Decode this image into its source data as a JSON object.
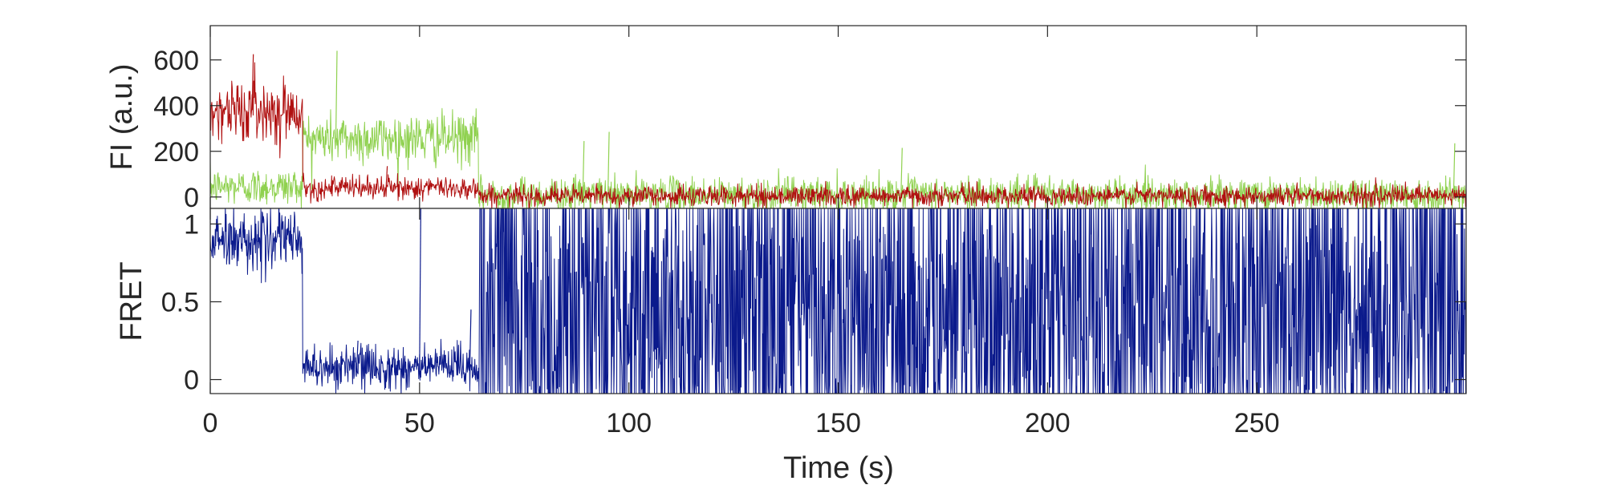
{
  "chart_data": [
    {
      "type": "line",
      "ylabel": "FI (a.u.)",
      "xlim": [
        0,
        300
      ],
      "ylim": [
        -50,
        750
      ],
      "xticks": [
        0,
        50,
        100,
        150,
        200,
        250
      ],
      "yticks": [
        0,
        200,
        400,
        600
      ],
      "ytick_labels": [
        "0",
        "200",
        "400",
        "600"
      ],
      "grid": false,
      "series": [
        {
          "color": "#8fd14f",
          "segments": [
            {
              "x0": 0,
              "x1": 22,
              "mean": 45,
              "noise": 40
            },
            {
              "x0": 22,
              "x1": 64,
              "mean": 255,
              "noise": 55
            },
            {
              "x0": 64,
              "x1": 300,
              "mean": 10,
              "noise": 38
            }
          ],
          "spikes": [
            [
              30,
              640
            ],
            [
              95,
              285
            ],
            [
              165,
              215
            ],
            [
              297,
              235
            ],
            [
              89,
              245
            ]
          ]
        },
        {
          "color": "#b01010",
          "segments": [
            {
              "x0": 0,
              "x1": 22,
              "mean": 380,
              "noise": 65
            },
            {
              "x0": 22,
              "x1": 64,
              "mean": 40,
              "noise": 25
            },
            {
              "x0": 64,
              "x1": 300,
              "mean": 5,
              "noise": 22
            }
          ],
          "spikes": [
            [
              10,
              625
            ],
            [
              42,
              135
            ]
          ]
        }
      ]
    },
    {
      "type": "line",
      "ylabel": "FRET",
      "xlabel": "Time (s)",
      "xlim": [
        0,
        300
      ],
      "ylim": [
        -0.09,
        1.1
      ],
      "xticks": [
        0,
        50,
        100,
        150,
        200,
        250
      ],
      "xtick_labels": [
        "0",
        "50",
        "100",
        "150",
        "200",
        "250"
      ],
      "yticks": [
        0,
        0.5,
        1
      ],
      "ytick_labels": [
        "0",
        "0.5",
        "1"
      ],
      "grid": false,
      "series": [
        {
          "color": "#0b1a8c",
          "segments": [
            {
              "x0": 0,
              "x1": 22,
              "mean": 0.9,
              "noise": 0.09
            },
            {
              "x0": 22,
              "x1": 64,
              "mean": 0.08,
              "noise": 0.07
            },
            {
              "x0": 64,
              "x1": 300,
              "mean": 0.45,
              "noise": 0.55,
              "clip": [
                -0.09,
                1.1
              ]
            }
          ],
          "spikes": [
            [
              50,
              1.1
            ],
            [
              35,
              0.25
            ],
            [
              62,
              0.45
            ]
          ]
        }
      ]
    }
  ]
}
